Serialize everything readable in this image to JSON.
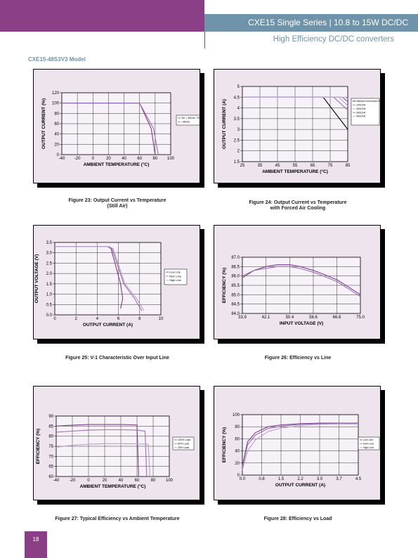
{
  "header": {
    "title": "CXE15 Single Series   |   10.8 to 15W DC/DC",
    "subtitle": "High Efficiency DC/DC converters",
    "color_purple": "#8b3f86",
    "color_blue": "#6f93a8"
  },
  "model_label": "CXE15-48S3V3 Model",
  "page_number": "18",
  "chart_data": [
    {
      "id": "fig23",
      "type": "line",
      "caption": "Figure 23: Output Current vs Temperature\n(Still Air)",
      "xlabel": "AMBIENT TEMPERATURE (°C)",
      "ylabel": "OUTPUT CURRENT (%)",
      "xlim": [
        -40,
        100
      ],
      "ylim": [
        0,
        120
      ],
      "xticks": [
        -40,
        -20,
        0,
        20,
        40,
        60,
        80,
        100
      ],
      "yticks": [
        0,
        20,
        40,
        60,
        80,
        100,
        120
      ],
      "xticklabels": [
        "-40",
        "-20",
        "0",
        "20",
        "40",
        "60",
        "80",
        "100"
      ],
      "yticklabels": [
        "0",
        "20",
        "40",
        "60",
        "80",
        "100",
        "120"
      ],
      "legend": [
        "Vin = 36Vdc~75Vdc",
        "~48Vdc"
      ],
      "series": [
        {
          "x": [
            -40,
            60,
            75,
            80
          ],
          "y": [
            100,
            100,
            50,
            0
          ]
        },
        {
          "x": [
            -40,
            60,
            78,
            84
          ],
          "y": [
            100,
            100,
            50,
            0
          ]
        }
      ]
    },
    {
      "id": "fig24",
      "type": "line",
      "caption": "Figure 24: Output Current vs Temperature\nwith Forced Air Cooling",
      "xlabel": "AMBIENT TEMPERATURE (°C)",
      "ylabel": "OUTPUT CURRENT (A)",
      "xlim": [
        25,
        85
      ],
      "ylim": [
        1.5,
        5
      ],
      "xticks": [
        25,
        35,
        45,
        55,
        65,
        75,
        85
      ],
      "yticks": [
        1.5,
        2,
        2.5,
        3,
        3.5,
        4,
        4.5,
        5
      ],
      "xticklabels": [
        "25",
        "35",
        "45",
        "55",
        "65",
        "75",
        "85"
      ],
      "yticklabels": [
        "1.5",
        "2",
        "2.5",
        "3",
        "3.5",
        "4",
        "4.5",
        "5"
      ],
      "legend": [
        "Natural Convection Simulation",
        "100LFM",
        "200LFM",
        "300LFM",
        "400LFM"
      ],
      "series": [
        {
          "x": [
            25,
            71,
            85
          ],
          "y": [
            4.5,
            4.5,
            3.0
          ]
        },
        {
          "x": [
            25,
            77,
            85
          ],
          "y": [
            4.5,
            4.5,
            3.9
          ]
        },
        {
          "x": [
            25,
            80,
            85
          ],
          "y": [
            4.5,
            4.5,
            4.1
          ]
        },
        {
          "x": [
            25,
            82,
            85
          ],
          "y": [
            4.5,
            4.5,
            4.3
          ]
        },
        {
          "x": [
            25,
            84,
            85
          ],
          "y": [
            4.5,
            4.5,
            4.4
          ]
        }
      ]
    },
    {
      "id": "fig25",
      "type": "line",
      "caption": "Figure 25: V-1 Characteristic Over Input Line",
      "xlabel": "OUTPUT CURRENT (A)",
      "ylabel": "OUTPUT VOLTAGE (V)",
      "xlim": [
        0,
        10
      ],
      "ylim": [
        0,
        3.5
      ],
      "xticks": [
        0,
        2,
        4,
        6,
        8,
        10
      ],
      "yticks": [
        0,
        0.5,
        1.0,
        1.5,
        2.0,
        2.5,
        3.0,
        3.5
      ],
      "xticklabels": [
        "0",
        "2",
        "4",
        "6",
        "8",
        "10"
      ],
      "yticklabels": [
        "0.0",
        "0.5",
        "1.0",
        "1.5",
        "2.0",
        "2.5",
        "3.0",
        "3.5"
      ],
      "legend": [
        "Low Line",
        "Nom Line",
        "High Line"
      ],
      "series": [
        {
          "x": [
            0,
            5.0,
            5.3,
            6.2,
            6.4,
            6.2
          ],
          "y": [
            3.3,
            3.3,
            3.2,
            1.5,
            0.8,
            0.3
          ]
        },
        {
          "x": [
            0,
            5.1,
            5.4,
            6.5,
            7.5,
            8.2
          ],
          "y": [
            3.3,
            3.3,
            3.2,
            1.5,
            0.8,
            0.2
          ]
        },
        {
          "x": [
            0,
            5.1,
            5.5,
            6.6,
            7.7,
            8.4
          ],
          "y": [
            3.3,
            3.3,
            3.2,
            1.5,
            0.8,
            0.2
          ]
        }
      ]
    },
    {
      "id": "fig26",
      "type": "line",
      "caption": "Figure 26: Efficiency vs Line",
      "xlabel": "INPUT VOLTAGE (V)",
      "ylabel": "EFFICIENCY (%)",
      "xlim": [
        33.9,
        75.0
      ],
      "ylim": [
        84.0,
        87.0
      ],
      "xticks": [
        33.9,
        42.1,
        50.4,
        58.6,
        66.8,
        75.0
      ],
      "yticks": [
        84.0,
        84.5,
        85.0,
        85.5,
        86.0,
        86.5,
        87.0
      ],
      "xticklabels": [
        "33.9",
        "42.1",
        "50.4",
        "58.6",
        "66.8",
        "75.0"
      ],
      "yticklabels": [
        "84.0",
        "84.5",
        "85.0",
        "85.5",
        "86.0",
        "86.5",
        "87.0"
      ],
      "series": [
        {
          "x": [
            33.9,
            38,
            42.1,
            46,
            50.4,
            54,
            58.6,
            62,
            66.8,
            71,
            75.0
          ],
          "y": [
            85.9,
            86.3,
            86.5,
            86.6,
            86.6,
            86.5,
            86.3,
            86.1,
            85.8,
            85.4,
            85.0
          ]
        },
        {
          "x": [
            33.9,
            38,
            42.1,
            46,
            50.4,
            54,
            58.6,
            62,
            66.8,
            71,
            75.0
          ],
          "y": [
            86.0,
            86.3,
            86.4,
            86.5,
            86.5,
            86.4,
            86.2,
            86.0,
            85.7,
            85.3,
            84.9
          ]
        }
      ]
    },
    {
      "id": "fig27",
      "type": "line",
      "caption": "Figure 27: Typical Efficiency vs Ambient Temperature",
      "xlabel": "AMBIENT TEMPERATURE (°C)",
      "ylabel": "EFFICIENCY (%)",
      "xlim": [
        -40,
        100
      ],
      "ylim": [
        60,
        90
      ],
      "xticks": [
        -40,
        -20,
        0,
        20,
        40,
        60,
        80,
        100
      ],
      "yticks": [
        60,
        65,
        70,
        75,
        80,
        85,
        90
      ],
      "xticklabels": [
        "-40",
        "-20",
        "0",
        "20",
        "40",
        "60",
        "80",
        "100"
      ],
      "yticklabels": [
        "60",
        "65",
        "70",
        "75",
        "80",
        "85",
        "90"
      ],
      "legend": [
        "100% Load",
        "60% Load",
        "25% Load"
      ],
      "series": [
        {
          "x": [
            -40,
            -20,
            0,
            20,
            40,
            60,
            62
          ],
          "y": [
            85,
            85.5,
            85.8,
            85.8,
            85.8,
            85.6,
            60
          ]
        },
        {
          "x": [
            -40,
            -20,
            0,
            20,
            40,
            60,
            70,
            72
          ],
          "y": [
            82,
            82.5,
            83,
            83.2,
            83.2,
            83,
            82.5,
            60
          ]
        },
        {
          "x": [
            -40,
            -20,
            0,
            20,
            40,
            60,
            74,
            76
          ],
          "y": [
            74.5,
            75.5,
            76,
            76.3,
            76.3,
            76.2,
            76,
            60
          ]
        }
      ]
    },
    {
      "id": "fig28",
      "type": "line",
      "caption": "Figure 28: Efficiency vs Load",
      "xlabel": "OUTPUT CURRENT (A)",
      "ylabel": "EFFICIENCY (%)",
      "xlim": [
        0,
        4.5
      ],
      "ylim": [
        0,
        100
      ],
      "xticks": [
        0,
        0.75,
        1.5,
        2.25,
        3.0,
        3.75,
        4.5
      ],
      "yticks": [
        0,
        20,
        40,
        60,
        80,
        100
      ],
      "xticklabels": [
        "0.0",
        "0.8",
        "1.5",
        "2.2",
        "3.0",
        "3.7",
        "4.5"
      ],
      "yticklabels": [
        "0",
        "20",
        "40",
        "60",
        "80",
        "100"
      ],
      "legend": [
        "Low Line",
        "Nom Line",
        "High Line"
      ],
      "series": [
        {
          "x": [
            0,
            0.2,
            0.5,
            1.0,
            1.5,
            2.25,
            3.0,
            3.75,
            4.5
          ],
          "y": [
            15,
            55,
            70,
            80,
            83,
            85,
            86,
            86,
            86
          ]
        },
        {
          "x": [
            0,
            0.2,
            0.5,
            1.0,
            1.5,
            2.25,
            3.0,
            3.75,
            4.5
          ],
          "y": [
            12,
            50,
            66,
            77,
            81,
            84,
            85,
            85.5,
            85.5
          ]
        },
        {
          "x": [
            0,
            0.2,
            0.5,
            1.0,
            1.5,
            2.25,
            3.0,
            3.75,
            4.5
          ],
          "y": [
            8,
            40,
            58,
            72,
            78,
            82,
            84,
            84.5,
            84.5
          ]
        }
      ]
    }
  ]
}
